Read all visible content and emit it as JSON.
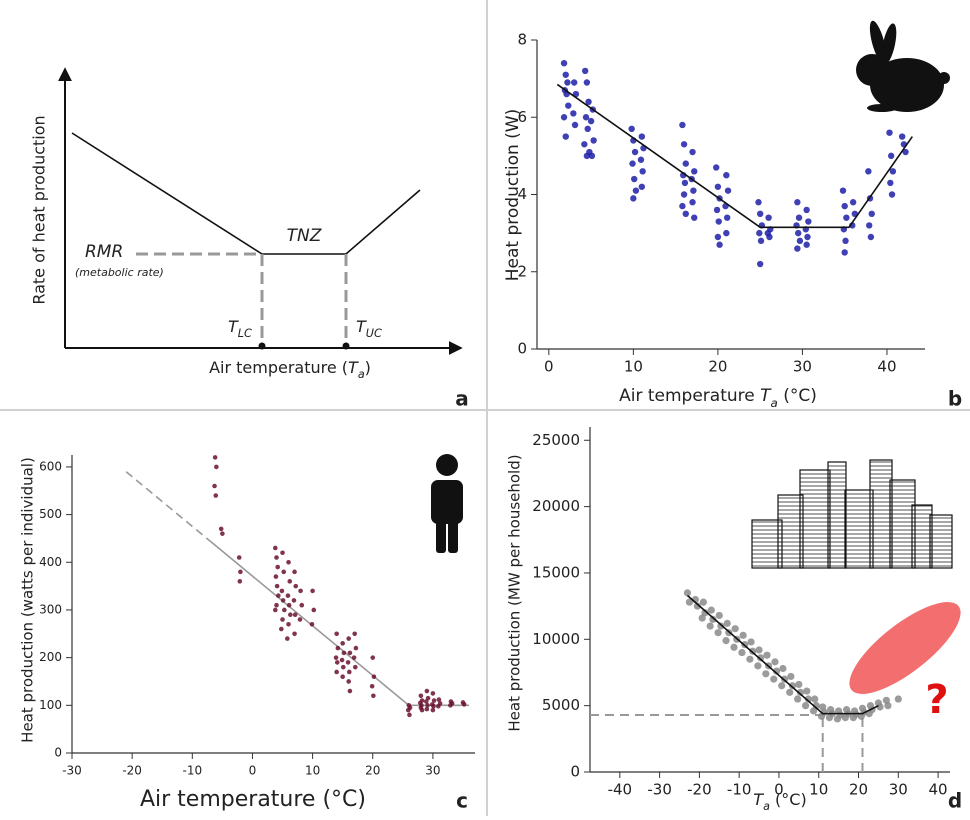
{
  "chart_data": [
    {
      "type": "schematic",
      "panel": "a",
      "ylabel": "Rate of heat production",
      "xlabel": [
        {
          "text": "Air temperature ("
        },
        {
          "text": "T",
          "style": "italic"
        },
        {
          "text": "a",
          "style": "italic-sub"
        },
        {
          "text": ")"
        }
      ],
      "rmr": "RMR",
      "rmr_note": "(metabolic rate)",
      "tnz": "TNZ",
      "tlc": [
        {
          "text": "T",
          "style": "italic"
        },
        {
          "text": "LC",
          "style": "italic-sub"
        }
      ],
      "tuc": [
        {
          "text": "T",
          "style": "italic"
        },
        {
          "text": "UC",
          "style": "italic-sub"
        }
      ]
    },
    {
      "type": "scatter",
      "panel": "b",
      "ylabel": "Heat production (W)",
      "xlabel": [
        {
          "text": "Air temperature "
        },
        {
          "text": "T",
          "style": "italic"
        },
        {
          "text": "a",
          "style": "italic-sub"
        },
        {
          "text": " (°C)"
        }
      ],
      "xlim": [
        -1.4,
        44.5
      ],
      "ylim": [
        0,
        8
      ],
      "xticks": [
        0,
        10,
        20,
        30,
        40
      ],
      "yticks": [
        0,
        2,
        4,
        6,
        8
      ],
      "series": [
        {
          "type": "scatter",
          "color": "#1f1fa8",
          "x": [
            1.8,
            2.0,
            2.2,
            1.9,
            2.1,
            2.3,
            1.8,
            2.0,
            3.0,
            3.2,
            2.9,
            3.1,
            4.3,
            4.5,
            4.7,
            4.4,
            4.6,
            4.2,
            4.8,
            4.5,
            5.2,
            5.0,
            5.3,
            5.1,
            9.8,
            10.0,
            10.2,
            9.9,
            10.1,
            10.3,
            10.0,
            11.0,
            11.2,
            10.9,
            11.1,
            11.0,
            15.8,
            16.0,
            16.2,
            15.9,
            16.1,
            16.0,
            15.8,
            16.2,
            17.0,
            17.2,
            16.9,
            17.1,
            17.0,
            17.2,
            19.8,
            20.0,
            20.2,
            19.9,
            20.1,
            20.0,
            20.2,
            21.0,
            21.2,
            20.9,
            21.1,
            21.0,
            24.8,
            25.0,
            25.2,
            24.9,
            25.1,
            25.0,
            26.0,
            26.2,
            25.9,
            26.1,
            29.4,
            29.6,
            29.3,
            29.5,
            29.7,
            29.4,
            30.5,
            30.7,
            30.4,
            30.6,
            30.5,
            34.8,
            35.0,
            35.2,
            34.9,
            35.1,
            35.0,
            36.0,
            36.2,
            35.9,
            37.8,
            38.0,
            38.2,
            37.9,
            38.1,
            40.3,
            40.5,
            40.7,
            40.4,
            40.6,
            41.8,
            42.0,
            42.2
          ],
          "values": [
            7.4,
            7.1,
            6.9,
            6.7,
            6.6,
            6.3,
            6.0,
            5.5,
            6.9,
            6.6,
            6.1,
            5.8,
            7.2,
            6.9,
            6.4,
            6.0,
            5.7,
            5.3,
            5.1,
            5.0,
            6.2,
            5.9,
            5.4,
            5.0,
            5.7,
            5.4,
            5.1,
            4.8,
            4.4,
            4.1,
            3.9,
            5.5,
            5.2,
            4.9,
            4.6,
            4.2,
            5.8,
            5.3,
            4.8,
            4.5,
            4.3,
            4.0,
            3.7,
            3.5,
            5.1,
            4.6,
            4.4,
            4.1,
            3.8,
            3.4,
            4.7,
            4.2,
            3.9,
            3.6,
            3.3,
            2.9,
            2.7,
            4.5,
            4.1,
            3.7,
            3.4,
            3.0,
            3.8,
            3.5,
            3.2,
            3.0,
            2.8,
            2.2,
            3.4,
            3.1,
            3.0,
            2.9,
            3.8,
            3.4,
            3.2,
            3.0,
            2.8,
            2.6,
            3.6,
            3.3,
            3.1,
            2.9,
            2.7,
            4.1,
            3.7,
            3.4,
            3.1,
            2.8,
            2.5,
            3.8,
            3.5,
            3.2,
            4.6,
            3.9,
            3.5,
            3.2,
            2.9,
            5.6,
            5.0,
            4.6,
            4.3,
            4.0,
            5.5,
            5.3,
            5.1
          ]
        },
        {
          "type": "line",
          "color": "#111111",
          "x": [
            1,
            25,
            35.5,
            43
          ],
          "values": [
            6.85,
            3.15,
            3.15,
            5.5
          ]
        }
      ]
    },
    {
      "type": "scatter",
      "panel": "c",
      "ylabel": "Heat production (watts per individual)",
      "xlabel": [
        {
          "text": "Air temperature (°C)"
        }
      ],
      "xlim": [
        -30,
        37
      ],
      "ylim": [
        0,
        625
      ],
      "xticks": [
        -30,
        -20,
        -10,
        0,
        10,
        20,
        30
      ],
      "yticks": [
        0,
        100,
        200,
        300,
        400,
        500,
        600
      ],
      "series": [
        {
          "type": "line",
          "color": "#999999",
          "dash": true,
          "x": [
            -21,
            -7
          ],
          "values": [
            590,
            444
          ]
        },
        {
          "type": "line",
          "color": "#999999",
          "x": [
            -7,
            26,
            36
          ],
          "values": [
            444,
            100,
            100
          ]
        },
        {
          "type": "scatter",
          "color": "#6b1030",
          "x": [
            -6.2,
            -6.0,
            -6.3,
            -6.1,
            -5.2,
            -5.0,
            -2.2,
            -2.0,
            -2.1,
            3.8,
            4.0,
            4.2,
            3.9,
            4.1,
            4.3,
            4.0,
            3.8,
            5.0,
            5.2,
            4.9,
            5.1,
            5.3,
            5.0,
            4.8,
            6.0,
            6.2,
            5.9,
            6.1,
            6.3,
            6.0,
            5.8,
            7.0,
            7.2,
            6.9,
            7.1,
            7.0,
            8.0,
            8.2,
            7.9,
            10.0,
            10.2,
            9.9,
            14.0,
            14.2,
            13.9,
            14.1,
            14.0,
            15.0,
            15.2,
            14.9,
            15.1,
            15.0,
            16.0,
            16.2,
            15.9,
            16.1,
            16.0,
            16.2,
            17.0,
            17.2,
            16.9,
            17.1,
            20.0,
            20.2,
            19.9,
            20.1,
            26.0,
            26.2,
            25.9,
            26.1,
            28.0,
            28.2,
            27.9,
            28.1,
            28.0,
            28.2,
            29.0,
            29.2,
            28.9,
            29.1,
            29.0,
            30.0,
            30.2,
            29.9,
            30.1,
            30.0,
            31.0,
            31.2,
            30.9,
            33.0,
            33.2,
            32.9,
            35.0,
            35.2
          ],
          "values": [
            620,
            600,
            560,
            540,
            470,
            460,
            410,
            380,
            360,
            430,
            410,
            390,
            370,
            350,
            330,
            310,
            300,
            420,
            380,
            340,
            320,
            300,
            280,
            260,
            400,
            360,
            330,
            310,
            290,
            270,
            240,
            380,
            350,
            320,
            290,
            250,
            340,
            310,
            280,
            340,
            300,
            270,
            250,
            220,
            200,
            190,
            170,
            230,
            210,
            195,
            180,
            160,
            240,
            210,
            190,
            170,
            150,
            130,
            250,
            220,
            200,
            180,
            200,
            160,
            140,
            120,
            100,
            95,
            90,
            80,
            120,
            110,
            105,
            100,
            95,
            90,
            130,
            115,
            108,
            100,
            92,
            125,
            110,
            102,
            98,
            90,
            112,
            104,
            98,
            108,
            104,
            100,
            106,
            102
          ]
        }
      ]
    },
    {
      "type": "scatter",
      "panel": "d",
      "ylabel": "Heat production (MW per household)",
      "xlabel": [
        {
          "text": "T",
          "style": "italic"
        },
        {
          "text": "a",
          "style": "italic-sub"
        },
        {
          "text": " (°C)"
        }
      ],
      "annotation": "?",
      "xlim": [
        -47.5,
        43
      ],
      "ylim": [
        0,
        26000
      ],
      "xticks": [
        -40,
        -30,
        -20,
        -10,
        0,
        10,
        20,
        30,
        40
      ],
      "yticks": [
        0,
        5000,
        10000,
        15000,
        20000,
        25000
      ],
      "thresholds": {
        "y": 4300,
        "x": [
          11,
          21
        ]
      },
      "series": [
        {
          "type": "scatter",
          "color": "#8a8a8a",
          "x": [
            -23,
            -22.5,
            -21,
            -20.5,
            -19,
            -18.6,
            -19.3,
            -17,
            -16.6,
            -17.3,
            -15,
            -14.6,
            -15.3,
            -13,
            -12.6,
            -13.3,
            -11,
            -10.6,
            -11.3,
            -9,
            -8.6,
            -9.3,
            -7,
            -6.6,
            -7.3,
            -5,
            -4.6,
            -5.3,
            -3,
            -2.6,
            -3.3,
            -1,
            -0.6,
            -1.3,
            1,
            1.4,
            0.7,
            3,
            3.4,
            2.7,
            5,
            5.4,
            4.7,
            7,
            7.4,
            6.7,
            9,
            9.4,
            8.7,
            11,
            11.4,
            10.7,
            13,
            13.4,
            12.7,
            15,
            15.4,
            14.7,
            17,
            17.4,
            16.7,
            19,
            19.4,
            18.7,
            21,
            21.4,
            20.7,
            23,
            23.4,
            22.7,
            25,
            25.4,
            27,
            27.4,
            30
          ],
          "values": [
            13500,
            12800,
            13000,
            12500,
            12800,
            12000,
            11600,
            12200,
            11500,
            11000,
            11800,
            11000,
            10500,
            11200,
            10500,
            9900,
            10800,
            10000,
            9400,
            10300,
            9600,
            9000,
            9800,
            9100,
            8500,
            9200,
            8600,
            8000,
            8800,
            8000,
            7400,
            8300,
            7600,
            7000,
            7800,
            7000,
            6500,
            7200,
            6500,
            6000,
            6600,
            6000,
            5500,
            6100,
            5500,
            5000,
            5500,
            5000,
            4600,
            4900,
            4500,
            4200,
            4700,
            4400,
            4100,
            4600,
            4300,
            4000,
            4700,
            4400,
            4100,
            4600,
            4350,
            4100,
            4800,
            4500,
            4200,
            5000,
            4700,
            4400,
            5200,
            4900,
            5400,
            5000,
            5500
          ]
        },
        {
          "type": "line",
          "color": "#111111",
          "x": [
            -23,
            11,
            21,
            25
          ],
          "values": [
            13300,
            4400,
            4400,
            5000
          ]
        }
      ]
    }
  ]
}
